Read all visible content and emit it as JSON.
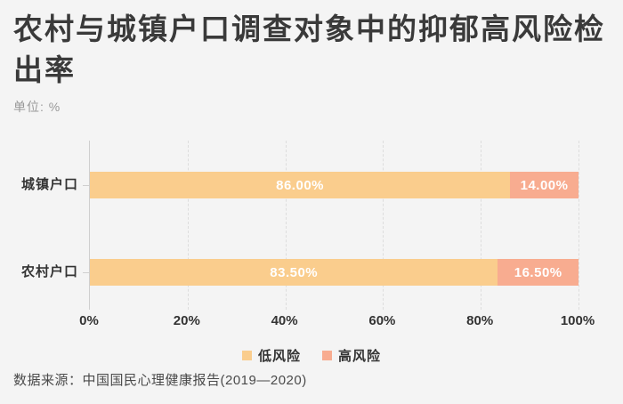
{
  "header": {
    "title": "农村与城镇户口调查对象中的抑郁高风险检出率",
    "unit": "单位: %"
  },
  "footer": {
    "source": "数据来源：中国国民心理健康报告(2019—2020)"
  },
  "colors": {
    "background": "#F4F4F4",
    "low_risk": "#FACD8D",
    "high_risk": "#F8AC90",
    "axis": "#CFCFCF",
    "gridline": "#DDDDDD",
    "value_label": "#FFFFFF"
  },
  "chart_data": {
    "type": "bar",
    "orientation": "horizontal-stacked",
    "categories": [
      "城镇户口",
      "农村户口"
    ],
    "series": [
      {
        "name": "低风险",
        "color": "#FACD8D",
        "values": [
          86.0,
          83.5
        ]
      },
      {
        "name": "高风险",
        "color": "#F8AC90",
        "values": [
          14.0,
          16.5
        ]
      }
    ],
    "value_labels": [
      [
        "86.00%",
        "14.00%"
      ],
      [
        "83.50%",
        "16.50%"
      ]
    ],
    "x_ticks": [
      "0%",
      "20%",
      "40%",
      "60%",
      "80%",
      "100%"
    ],
    "xlim": [
      0,
      100
    ],
    "grid": "dashed-vertical",
    "legend_position": "bottom-center",
    "title": "农村与城镇户口调查对象中的抑郁高风险检出率",
    "xlabel": "",
    "ylabel": ""
  }
}
